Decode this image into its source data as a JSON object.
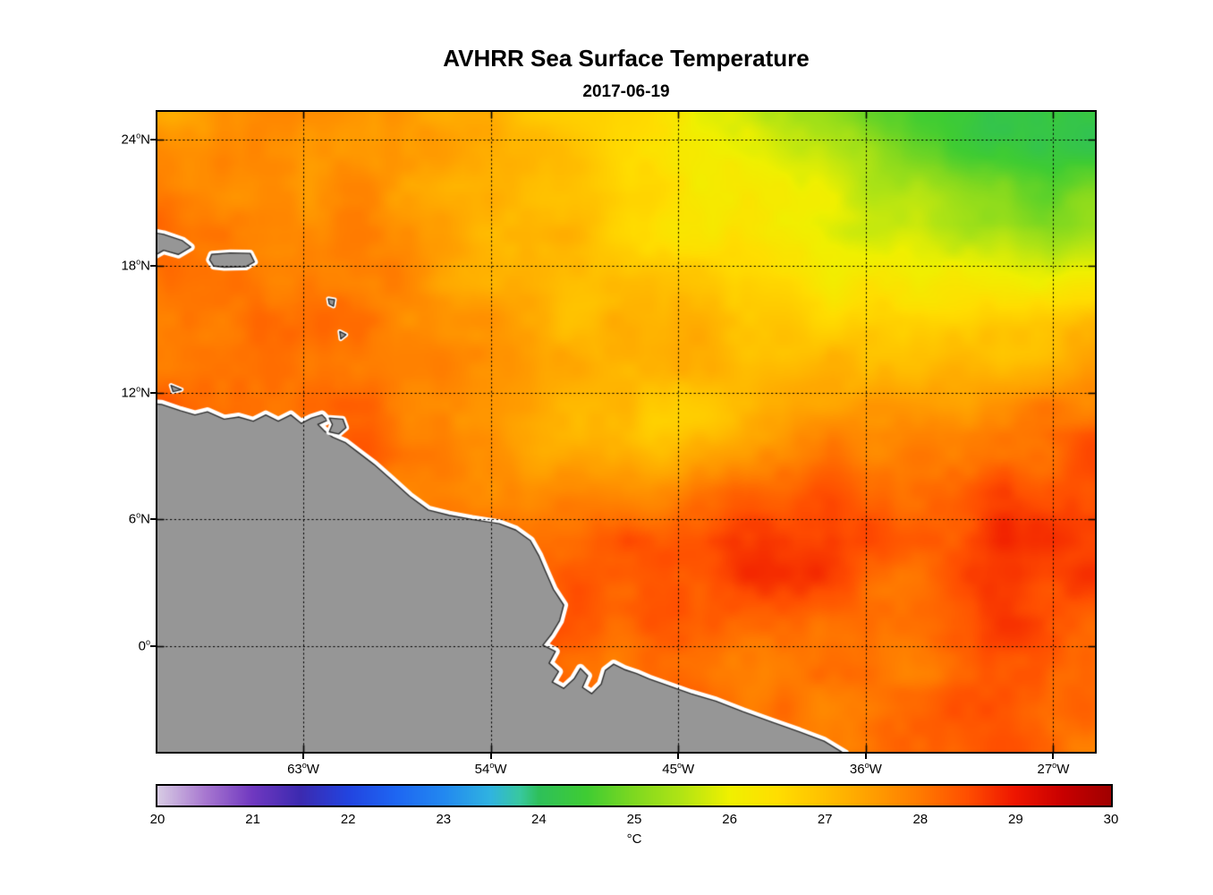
{
  "title": "AVHRR Sea Surface Temperature",
  "subtitle": "2017-06-19",
  "chart_data": {
    "type": "heatmap",
    "title": "AVHRR Sea Surface Temperature",
    "subtitle_date": "2017-06-19",
    "colorbar_label": "°C",
    "grid_style": "dotted",
    "xlim": [
      -70,
      -25
    ],
    "ylim": [
      -5,
      25.3
    ],
    "x_ticks": [
      {
        "num": "63",
        "deg": "o",
        "dir": "W",
        "lon": -63
      },
      {
        "num": "54",
        "deg": "o",
        "dir": "W",
        "lon": -54
      },
      {
        "num": "45",
        "deg": "o",
        "dir": "W",
        "lon": -45
      },
      {
        "num": "36",
        "deg": "o",
        "dir": "W",
        "lon": -36
      },
      {
        "num": "27",
        "deg": "o",
        "dir": "W",
        "lon": -27
      }
    ],
    "y_ticks": [
      {
        "num": "24",
        "deg": "o",
        "dir": "N",
        "lat": 24
      },
      {
        "num": "18",
        "deg": "o",
        "dir": "N",
        "lat": 18
      },
      {
        "num": "12",
        "deg": "o",
        "dir": "N",
        "lat": 12
      },
      {
        "num": "6",
        "deg": "o",
        "dir": "N",
        "lat": 6
      },
      {
        "num": "0",
        "deg": "o",
        "dir": "",
        "lat": 0
      }
    ],
    "colorbar": {
      "min": 20,
      "max": 30,
      "ticks": [
        20,
        21,
        22,
        23,
        24,
        25,
        26,
        27,
        28,
        29,
        30
      ],
      "stops": [
        [
          20.0,
          "#D8CCE4"
        ],
        [
          20.5,
          "#A878D0"
        ],
        [
          21.0,
          "#7038C0"
        ],
        [
          21.5,
          "#3C2AB0"
        ],
        [
          22.0,
          "#2244E0"
        ],
        [
          22.5,
          "#1E66F2"
        ],
        [
          23.0,
          "#2288F0"
        ],
        [
          23.5,
          "#30B4E0"
        ],
        [
          23.8,
          "#38C8A0"
        ],
        [
          24.0,
          "#2EC05A"
        ],
        [
          24.5,
          "#3FCC33"
        ],
        [
          25.0,
          "#7FD820"
        ],
        [
          25.5,
          "#B2E414"
        ],
        [
          26.0,
          "#F0F000"
        ],
        [
          26.5,
          "#FFDE00"
        ],
        [
          27.0,
          "#FFC000"
        ],
        [
          27.5,
          "#FF9E00"
        ],
        [
          28.0,
          "#FF7A00"
        ],
        [
          28.5,
          "#FF4E00"
        ],
        [
          29.0,
          "#EE1500"
        ],
        [
          29.5,
          "#C80000"
        ],
        [
          30.0,
          "#A00000"
        ]
      ]
    },
    "sst_grid": {
      "lons": [
        -70,
        -65,
        -60,
        -55,
        -50,
        -45,
        -40,
        -35,
        -30,
        -25
      ],
      "lats": [
        25,
        20,
        15,
        10,
        5,
        0,
        -5
      ],
      "values_degC": [
        [
          27.8,
          27.8,
          27.5,
          27.1,
          26.6,
          26.1,
          25.5,
          24.9,
          24.5,
          24.3
        ],
        [
          28.0,
          28.0,
          27.6,
          27.2,
          26.8,
          26.3,
          25.8,
          25.3,
          24.9,
          24.8
        ],
        [
          28.2,
          28.1,
          27.8,
          27.4,
          27.1,
          26.9,
          26.7,
          26.6,
          26.7,
          26.9
        ],
        [
          28.4,
          28.3,
          28.0,
          27.6,
          27.4,
          27.3,
          27.5,
          27.9,
          28.1,
          28.3
        ],
        [
          28.5,
          28.4,
          28.3,
          28.2,
          28.4,
          28.5,
          28.5,
          28.5,
          28.6,
          28.5
        ],
        [
          28.5,
          28.5,
          28.4,
          28.5,
          28.6,
          28.5,
          28.4,
          28.3,
          28.3,
          28.2
        ],
        [
          28.5,
          28.5,
          28.5,
          28.4,
          28.3,
          28.2,
          28.1,
          28.0,
          28.0,
          27.9
        ]
      ]
    },
    "noise_amplitude_degC": 0.75,
    "land_color": "#969696",
    "coast_halo": "#FFFFFF",
    "coast_line_color": "#2F2F2F",
    "land_polygons": {
      "south_america": [
        [
          -72.0,
          11.6
        ],
        [
          -69.8,
          11.45
        ],
        [
          -68.9,
          11.15
        ],
        [
          -68.2,
          10.95
        ],
        [
          -67.6,
          11.1
        ],
        [
          -66.8,
          10.75
        ],
        [
          -66.1,
          10.85
        ],
        [
          -65.4,
          10.65
        ],
        [
          -64.8,
          10.95
        ],
        [
          -64.2,
          10.65
        ],
        [
          -63.6,
          10.95
        ],
        [
          -63.1,
          10.55
        ],
        [
          -62.6,
          10.8
        ],
        [
          -62.1,
          10.95
        ],
        [
          -61.85,
          10.7
        ],
        [
          -62.3,
          10.5
        ],
        [
          -62.0,
          10.2
        ],
        [
          -61.6,
          9.9
        ],
        [
          -61.0,
          9.65
        ],
        [
          -60.4,
          9.2
        ],
        [
          -59.6,
          8.6
        ],
        [
          -58.8,
          7.9
        ],
        [
          -57.9,
          7.1
        ],
        [
          -57.0,
          6.45
        ],
        [
          -56.0,
          6.2
        ],
        [
          -54.9,
          6.0
        ],
        [
          -53.6,
          5.8
        ],
        [
          -52.8,
          5.5
        ],
        [
          -52.1,
          5.0
        ],
        [
          -51.7,
          4.3
        ],
        [
          -51.4,
          3.6
        ],
        [
          -51.0,
          2.7
        ],
        [
          -50.5,
          1.95
        ],
        [
          -50.7,
          1.2
        ],
        [
          -51.1,
          0.55
        ],
        [
          -51.5,
          0.05
        ],
        [
          -50.9,
          -0.25
        ],
        [
          -51.2,
          -0.8
        ],
        [
          -50.75,
          -1.2
        ],
        [
          -51.05,
          -1.7
        ],
        [
          -50.5,
          -2.0
        ],
        [
          -50.0,
          -1.55
        ],
        [
          -49.7,
          -1.05
        ],
        [
          -49.35,
          -1.4
        ],
        [
          -49.6,
          -1.95
        ],
        [
          -49.15,
          -2.25
        ],
        [
          -48.7,
          -1.8
        ],
        [
          -48.5,
          -1.15
        ],
        [
          -48.1,
          -0.85
        ],
        [
          -47.6,
          -1.1
        ],
        [
          -47.0,
          -1.3
        ],
        [
          -46.4,
          -1.55
        ],
        [
          -45.4,
          -1.9
        ],
        [
          -44.4,
          -2.25
        ],
        [
          -43.2,
          -2.6
        ],
        [
          -41.9,
          -3.1
        ],
        [
          -40.5,
          -3.6
        ],
        [
          -39.2,
          -4.05
        ],
        [
          -38.0,
          -4.5
        ],
        [
          -37.0,
          -5.1
        ],
        [
          -36.5,
          -6.5
        ],
        [
          -72.0,
          -6.5
        ]
      ],
      "hispaniola": [
        [
          -72.0,
          19.9
        ],
        [
          -69.7,
          19.5
        ],
        [
          -68.8,
          19.2
        ],
        [
          -68.4,
          18.9
        ],
        [
          -69.0,
          18.55
        ],
        [
          -69.7,
          18.75
        ],
        [
          -70.4,
          18.35
        ],
        [
          -72.0,
          18.3
        ]
      ],
      "puerto_rico": [
        [
          -67.4,
          18.55
        ],
        [
          -66.5,
          18.62
        ],
        [
          -65.55,
          18.6
        ],
        [
          -65.35,
          18.2
        ],
        [
          -65.75,
          17.97
        ],
        [
          -66.8,
          17.95
        ],
        [
          -67.3,
          18.0
        ],
        [
          -67.5,
          18.3
        ]
      ],
      "trinidad": [
        [
          -61.75,
          10.8
        ],
        [
          -61.1,
          10.75
        ],
        [
          -60.95,
          10.35
        ],
        [
          -61.3,
          10.05
        ],
        [
          -61.75,
          10.15
        ],
        [
          -61.6,
          10.5
        ]
      ],
      "guadeloupe": [
        [
          -61.8,
          16.45
        ],
        [
          -61.5,
          16.4
        ],
        [
          -61.55,
          16.1
        ],
        [
          -61.75,
          16.2
        ]
      ],
      "martinique": [
        [
          -61.25,
          14.9
        ],
        [
          -60.95,
          14.75
        ],
        [
          -61.2,
          14.55
        ]
      ],
      "bonaire": [
        [
          -69.35,
          12.35
        ],
        [
          -68.85,
          12.15
        ],
        [
          -69.25,
          12.05
        ]
      ]
    }
  }
}
